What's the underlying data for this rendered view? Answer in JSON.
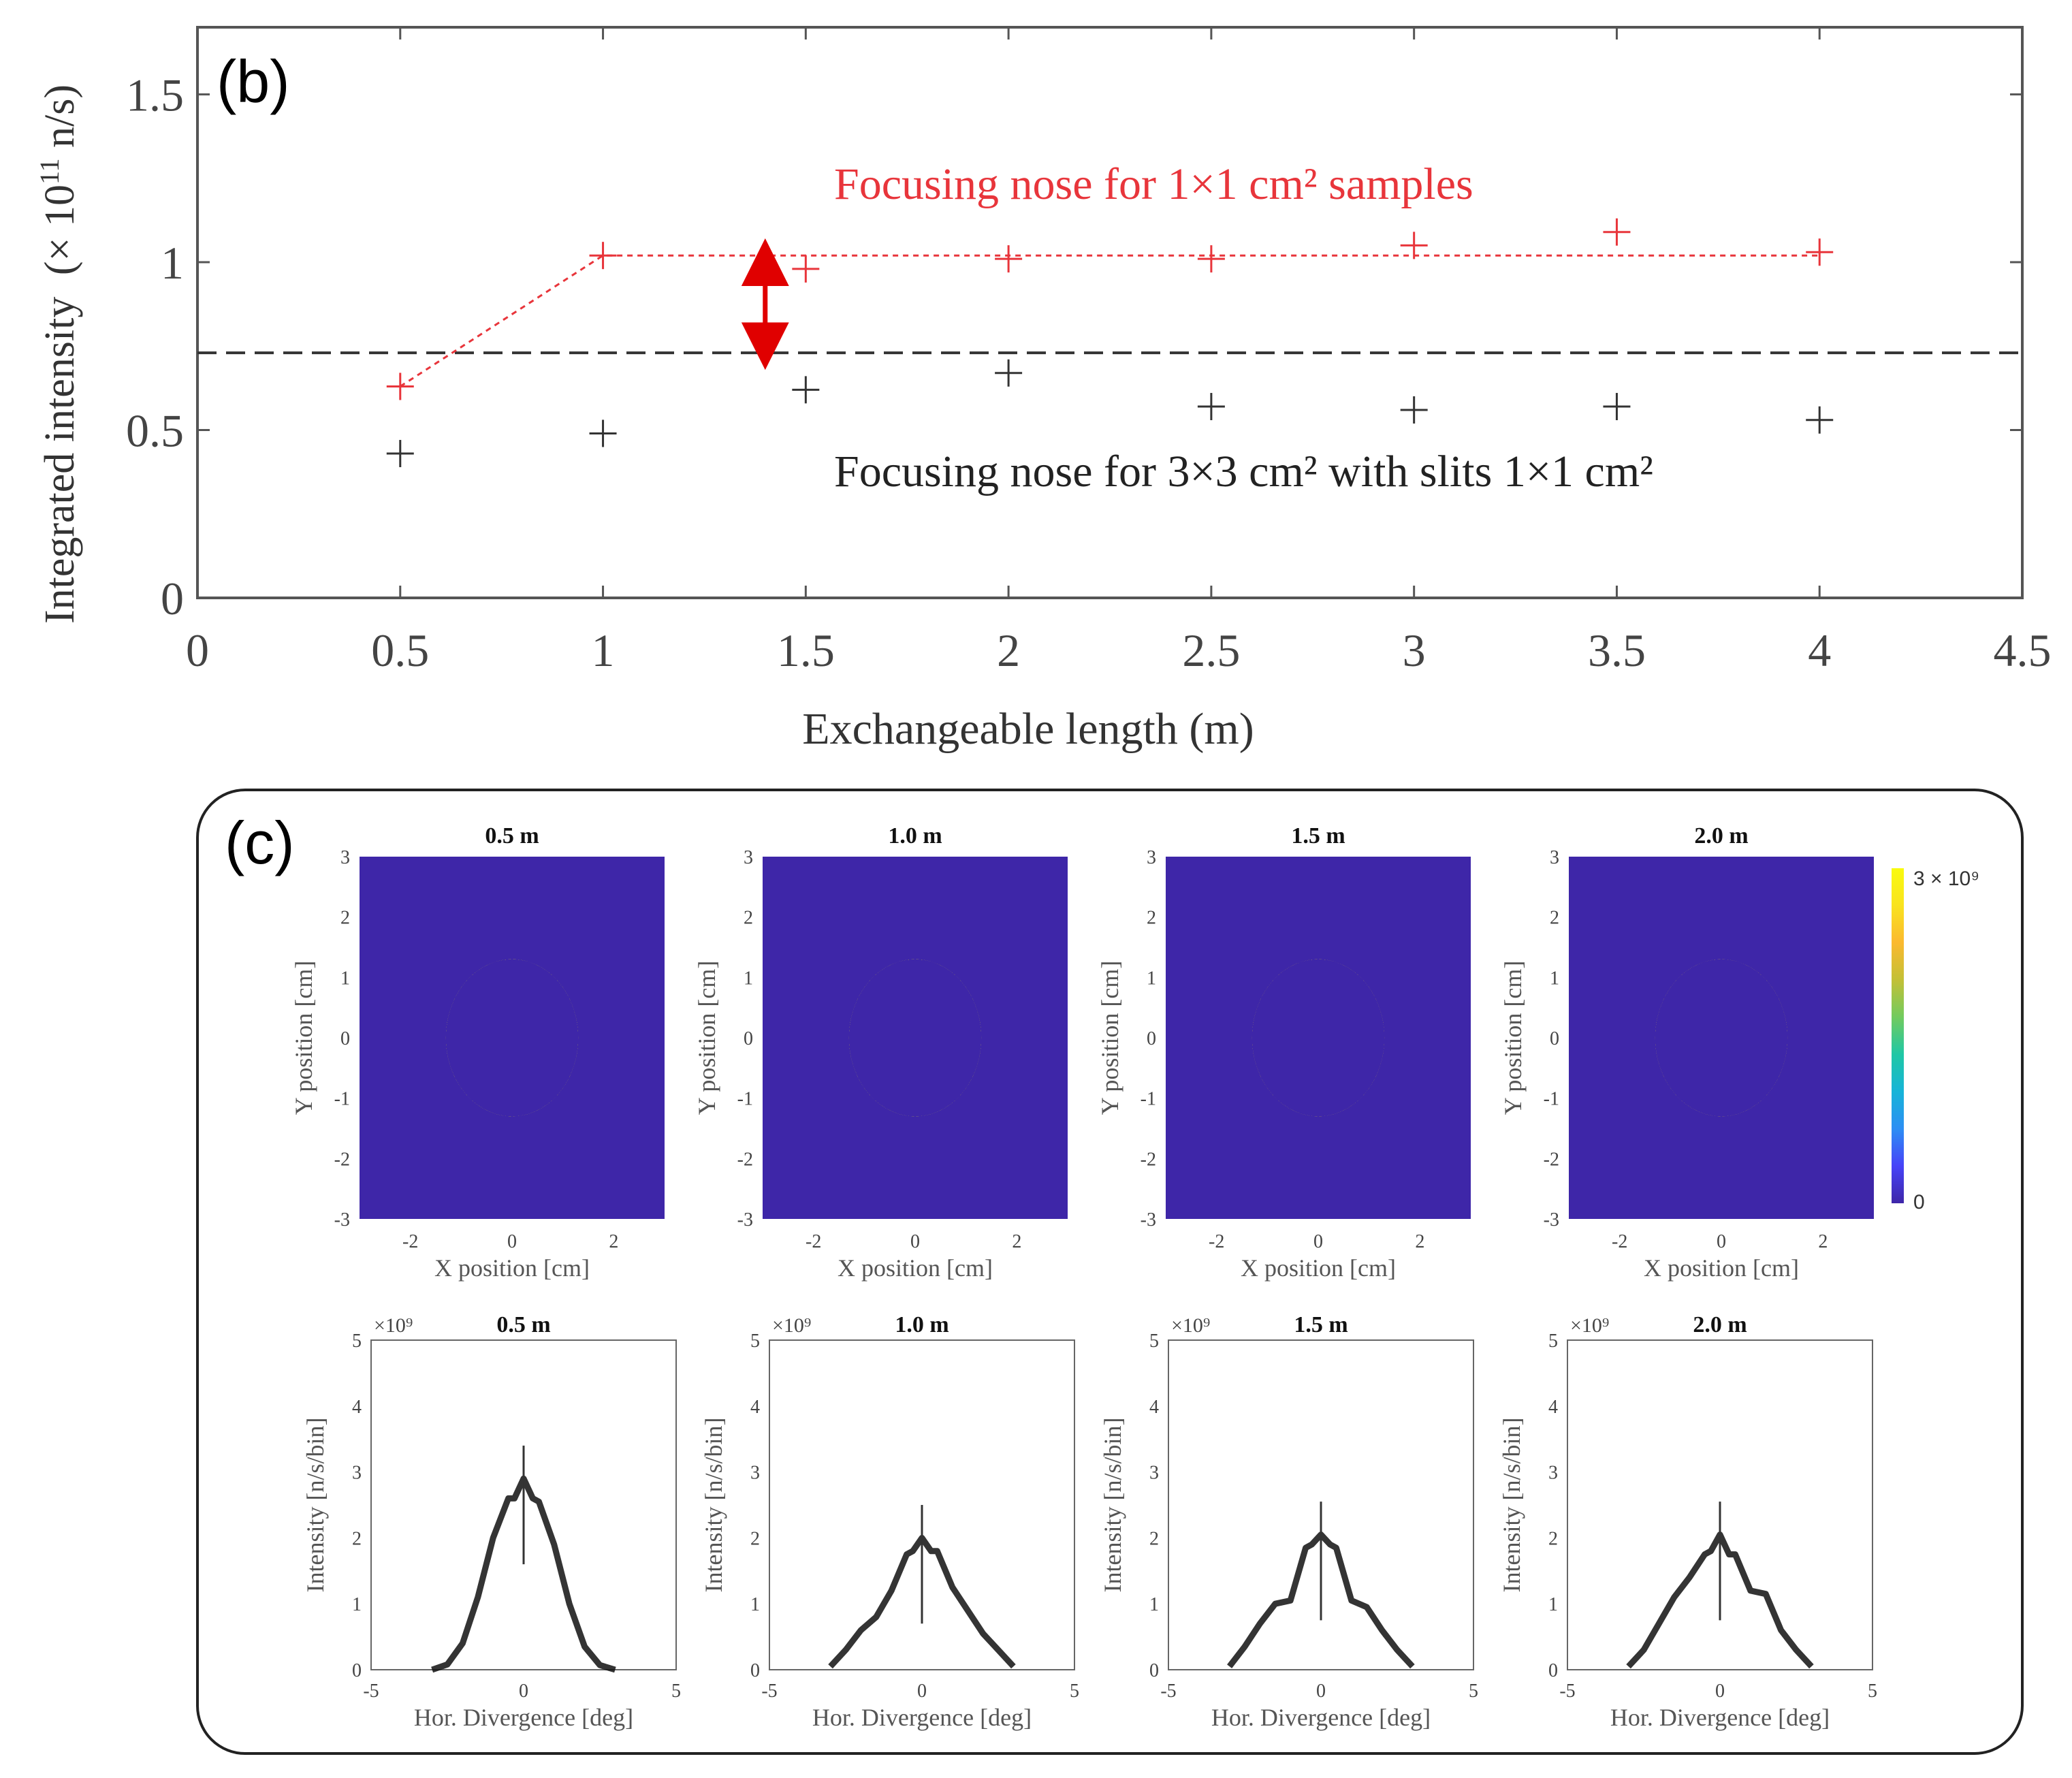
{
  "panel_b": {
    "label": "(b)",
    "ylabel_main": "Integrated intensity",
    "ylabel_unit_prefix": "(× 10",
    "ylabel_unit_exp": "11",
    "ylabel_unit_suffix": " n/s)",
    "xlabel": "Exchangeable length (m)",
    "annotation_red": "Focusing nose for 1×1 cm² samples",
    "annotation_black": "Focusing nose for 3×3 cm² with slits 1×1 cm²",
    "colors": {
      "red": "#e8353b",
      "black": "#333333",
      "arrow": "#e00000"
    }
  },
  "panel_c": {
    "label": "(c)",
    "maps_xlabel": "X position [cm]",
    "maps_ylabel": "Y position [cm]",
    "profiles_xlabel": "Hor.  Divergence [deg]",
    "profiles_ylabel": "Intensity [n/s/bin]",
    "profiles_multiplier": "×10⁹",
    "colorbar_max_label": "3 × 10⁹",
    "colorbar_min_label": "0",
    "titles": [
      "0.5 m",
      "1.0 m",
      "1.5 m",
      "2.0 m"
    ],
    "colormap": [
      "#3e26a8",
      "#4743f8",
      "#2d8ef4",
      "#16b4d8",
      "#1fc7a5",
      "#72cb5e",
      "#c3c036",
      "#fbb92f",
      "#f9e31f",
      "#f9fb0e"
    ]
  },
  "chart_data": [
    {
      "type": "scatter",
      "title": "",
      "xlabel": "Exchangeable length (m)",
      "ylabel": "Integrated intensity (× 10¹¹ n/s)",
      "xlim": [
        0,
        4.5
      ],
      "ylim": [
        0,
        1.7
      ],
      "xticks": [
        0,
        0.5,
        1,
        1.5,
        2,
        2.5,
        3,
        3.5,
        4,
        4.5
      ],
      "xtick_labels": [
        "0",
        "0.5",
        "1",
        "1.5",
        "2",
        "2.5",
        "3",
        "3.5",
        "4",
        "4.5"
      ],
      "yticks": [
        0,
        0.5,
        1,
        1.5
      ],
      "ytick_labels": [
        "0",
        "0.5",
        "1",
        "1.5"
      ],
      "grid": false,
      "series": [
        {
          "marker": "+",
          "color": "#e8353b",
          "x": [
            0.5,
            1,
            1.5,
            2,
            2.5,
            3,
            3.5,
            4
          ],
          "y": [
            0.63,
            1.02,
            0.98,
            1.01,
            1.01,
            1.05,
            1.09,
            1.03
          ]
        },
        {
          "marker": "+",
          "color": "#333333",
          "x": [
            0.5,
            1,
            1.5,
            2,
            2.5,
            3,
            3.5,
            4
          ],
          "y": [
            0.43,
            0.49,
            0.62,
            0.67,
            0.57,
            0.56,
            0.57,
            0.53
          ]
        }
      ],
      "fit_line": {
        "style": "dotted",
        "color": "#e8353b",
        "x": [
          0.5,
          1,
          4
        ],
        "y": [
          0.63,
          1.02,
          1.02
        ]
      },
      "reference_line": {
        "style": "dashed",
        "color": "#333333",
        "y": 0.73
      },
      "double_arrow": {
        "x": 1.4,
        "y_from": 0.75,
        "y_to": 1.0
      }
    },
    {
      "type": "heatmap",
      "xlabel": "X position [cm]",
      "ylabel": "Y position [cm]",
      "xlim": [
        -3,
        3
      ],
      "ylim": [
        -3,
        3
      ],
      "xticks": [
        -2,
        0,
        2
      ],
      "xtick_labels": [
        "-2",
        "0",
        "2"
      ],
      "yticks": [
        -3,
        -2,
        -1,
        0,
        1,
        2,
        3
      ],
      "ytick_labels": [
        "-3",
        "-2",
        "-1",
        "0",
        "1",
        "2",
        "3"
      ],
      "colorbar": {
        "min": 0,
        "max": 3000000000.0
      },
      "maps": [
        {
          "title": "0.5 m",
          "spot_center": [
            0,
            0
          ],
          "spot_halfwidth": 1.3,
          "peak": 1.0
        },
        {
          "title": "1.0 m",
          "spot_center": [
            0,
            0
          ],
          "spot_halfwidth": 1.3,
          "peak": 0.98
        },
        {
          "title": "1.5 m",
          "spot_center": [
            0,
            0
          ],
          "spot_halfwidth": 1.3,
          "peak": 0.9
        },
        {
          "title": "2.0 m",
          "spot_center": [
            0,
            0
          ],
          "spot_halfwidth": 1.3,
          "peak": 0.88
        }
      ]
    },
    {
      "type": "line",
      "xlabel": "Hor.  Divergence [deg]",
      "ylabel": "Intensity [n/s/bin]",
      "xlim": [
        -5,
        5
      ],
      "ylim": [
        0,
        5
      ],
      "xticks": [
        -5,
        0,
        5
      ],
      "xtick_labels": [
        "-5",
        "0",
        "5"
      ],
      "yticks": [
        0,
        1,
        2,
        3,
        4,
        5
      ],
      "ytick_labels": [
        "0",
        "1",
        "2",
        "3",
        "4",
        "5"
      ],
      "multiplier": "1e9",
      "x": [
        -3,
        -2.5,
        -2,
        -1.5,
        -1,
        -0.5,
        -0.3,
        0,
        0.3,
        0.5,
        1,
        1.5,
        2,
        2.5,
        3
      ],
      "series": [
        {
          "title": "0.5 m",
          "y": [
            0.0,
            0.08,
            0.4,
            1.1,
            2.0,
            2.6,
            2.6,
            2.9,
            2.6,
            2.55,
            1.9,
            1.0,
            0.35,
            0.07,
            0.0
          ]
        },
        {
          "title": "1.0 m",
          "y": [
            0.05,
            0.3,
            0.6,
            0.8,
            1.2,
            1.75,
            1.8,
            2.0,
            1.8,
            1.8,
            1.25,
            0.9,
            0.55,
            0.3,
            0.05
          ]
        },
        {
          "title": "1.5 m",
          "y": [
            0.05,
            0.35,
            0.7,
            1.0,
            1.05,
            1.85,
            1.9,
            2.05,
            1.9,
            1.85,
            1.05,
            0.95,
            0.6,
            0.3,
            0.05
          ]
        },
        {
          "title": "2.0 m",
          "y": [
            0.05,
            0.3,
            0.7,
            1.1,
            1.4,
            1.75,
            1.8,
            2.05,
            1.75,
            1.75,
            1.2,
            1.15,
            0.6,
            0.3,
            0.05
          ]
        }
      ]
    }
  ]
}
